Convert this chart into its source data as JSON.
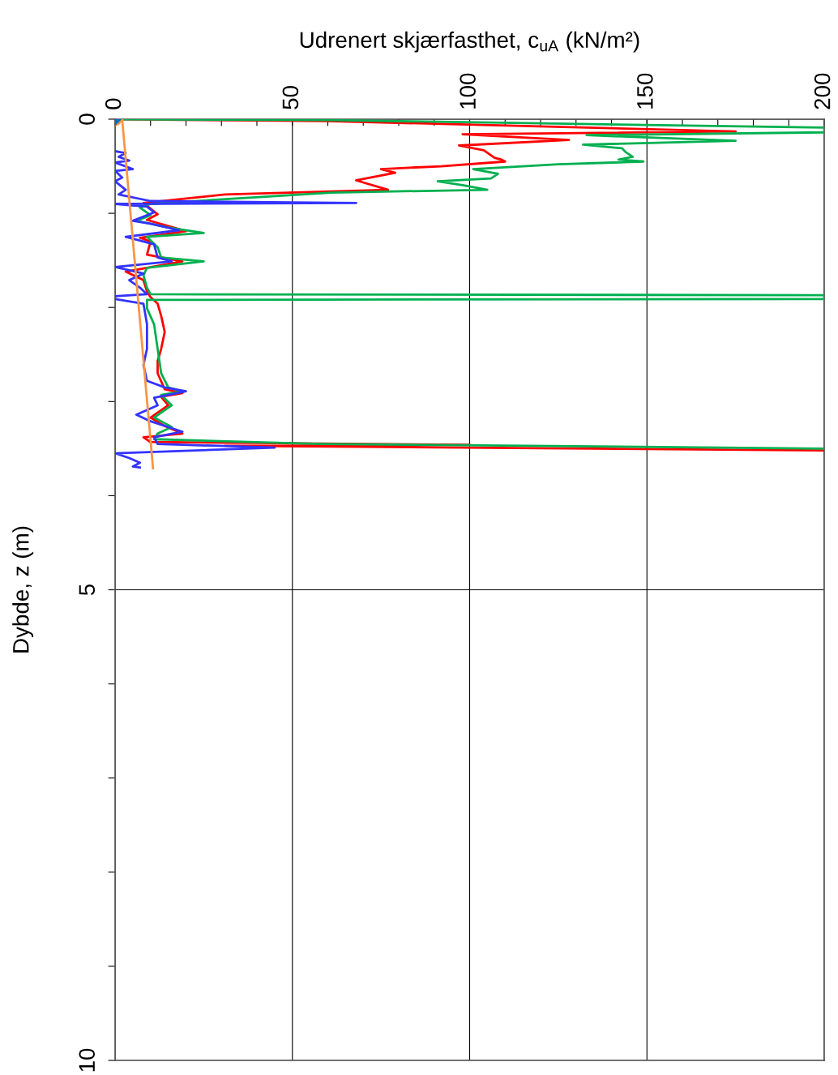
{
  "chart_data": {
    "type": "line",
    "xlabel": "Udrenert skjærfasthet, c$_{uA}$ (kN/m²)",
    "ylabel": "Dybde, z (m)",
    "xlim": [
      0,
      200
    ],
    "ylim": [
      10,
      0
    ],
    "xticks": [
      0,
      {
        "value": 10,
        "label": null
      },
      {
        "value": 20,
        "label": null
      },
      {
        "value": 30,
        "label": null
      },
      {
        "value": 40,
        "label": null
      },
      50,
      {
        "value": 60,
        "label": null
      },
      {
        "value": 70,
        "label": null
      },
      {
        "value": 80,
        "label": null
      },
      {
        "value": 90,
        "label": null
      },
      100,
      {
        "value": 110,
        "label": null
      },
      {
        "value": 120,
        "label": null
      },
      {
        "value": 130,
        "label": null
      },
      {
        "value": 140,
        "label": null
      },
      150,
      {
        "value": 160,
        "label": null
      },
      {
        "value": 170,
        "label": null
      },
      {
        "value": 180,
        "label": null
      },
      {
        "value": 190,
        "label": null
      },
      200
    ],
    "yticks": [
      0,
      {
        "value": 1,
        "label": null
      },
      {
        "value": 2,
        "label": null
      },
      {
        "value": 3,
        "label": null
      },
      {
        "value": 4,
        "label": null
      },
      5,
      {
        "value": 6,
        "label": null
      },
      {
        "value": 7,
        "label": null
      },
      {
        "value": 8,
        "label": null
      },
      {
        "value": 9,
        "label": null
      },
      10
    ],
    "grid": true,
    "legend": false,
    "line_style": "solid",
    "series": [
      {
        "color": "#ff0000",
        "x": [
          0,
          60,
          175,
          98,
          128,
          97,
          104,
          107,
          109,
          110,
          92,
          75,
          79,
          68,
          77,
          31,
          8,
          10,
          12,
          9,
          20,
          7,
          10,
          9,
          19,
          3,
          8,
          9,
          10,
          12,
          13,
          14,
          13,
          12,
          12,
          14,
          19,
          13,
          15,
          10,
          14,
          19,
          8,
          10,
          100,
          31,
          200
        ],
        "values": [
          0,
          0.02,
          0.13,
          0.16,
          0.22,
          0.28,
          0.33,
          0.41,
          0.43,
          0.45,
          0.5,
          0.53,
          0.57,
          0.65,
          0.75,
          0.8,
          0.89,
          0.95,
          1.01,
          1.07,
          1.19,
          1.26,
          1.3,
          1.44,
          1.51,
          1.62,
          1.71,
          1.83,
          1.89,
          1.96,
          2.09,
          2.26,
          2.44,
          2.57,
          2.7,
          2.87,
          2.91,
          2.95,
          3.04,
          3.17,
          3.26,
          3.34,
          3.38,
          3.43,
          3.46,
          3.47,
          3.52
        ]
      },
      {
        "color": "#00b050",
        "x": [
          0,
          60,
          200,
          200,
          133,
          175,
          132,
          143,
          144,
          146,
          142,
          149,
          125,
          101,
          108,
          106,
          91,
          98,
          105,
          61,
          10,
          7,
          10,
          6,
          15,
          25,
          9,
          12,
          13,
          25,
          9,
          8,
          9,
          10,
          200,
          200,
          9,
          9,
          11,
          12,
          13,
          15,
          19,
          13,
          16,
          11,
          16,
          12,
          11,
          58,
          200
        ],
        "values": [
          0,
          0.01,
          0.09,
          0.14,
          0.17,
          0.23,
          0.27,
          0.31,
          0.35,
          0.4,
          0.43,
          0.45,
          0.48,
          0.53,
          0.58,
          0.63,
          0.66,
          0.7,
          0.75,
          0.78,
          0.9,
          0.94,
          1.02,
          1.08,
          1.15,
          1.21,
          1.25,
          1.36,
          1.47,
          1.51,
          1.58,
          1.66,
          1.79,
          1.86,
          1.87,
          1.91,
          1.92,
          2.01,
          2.18,
          2.44,
          2.7,
          2.85,
          2.89,
          2.93,
          3.04,
          3.17,
          3.27,
          3.34,
          3.4,
          3.45,
          3.5
        ]
      },
      {
        "color": "#3333ff",
        "x": [
          0,
          3,
          1,
          4,
          0,
          5,
          0,
          2,
          0,
          3,
          1,
          10,
          68,
          0,
          9,
          11,
          5,
          10,
          18,
          3,
          8,
          11,
          12,
          16,
          0,
          8,
          4,
          7,
          9,
          0,
          0,
          8,
          9,
          9,
          8,
          9,
          14,
          20,
          11,
          12,
          6,
          10,
          19,
          11,
          12,
          45,
          0,
          4,
          7,
          5,
          7
        ],
        "values": [
          0.34,
          0.36,
          0.4,
          0.44,
          0.46,
          0.53,
          0.55,
          0.62,
          0.66,
          0.75,
          0.8,
          0.87,
          0.89,
          0.9,
          0.93,
          0.99,
          1.08,
          1.11,
          1.18,
          1.25,
          1.3,
          1.33,
          1.47,
          1.51,
          1.57,
          1.64,
          1.71,
          1.79,
          1.86,
          1.88,
          1.91,
          1.96,
          2.18,
          2.44,
          2.61,
          2.78,
          2.85,
          2.89,
          2.96,
          3.04,
          3.14,
          3.21,
          3.32,
          3.38,
          3.45,
          3.49,
          3.55,
          3.6,
          3.65,
          3.69,
          3.7
        ]
      },
      {
        "color": "#f79646",
        "x": [
          2,
          10.7
        ],
        "values": [
          0,
          3.71
        ]
      },
      {
        "type": "scatter",
        "marker": "circle",
        "color": "#f79646",
        "x": [
          0
        ],
        "values": [
          0
        ]
      },
      {
        "type": "scatter",
        "marker": "diamond",
        "color": "#0070c0",
        "x": [
          0
        ],
        "values": [
          0
        ]
      }
    ]
  }
}
